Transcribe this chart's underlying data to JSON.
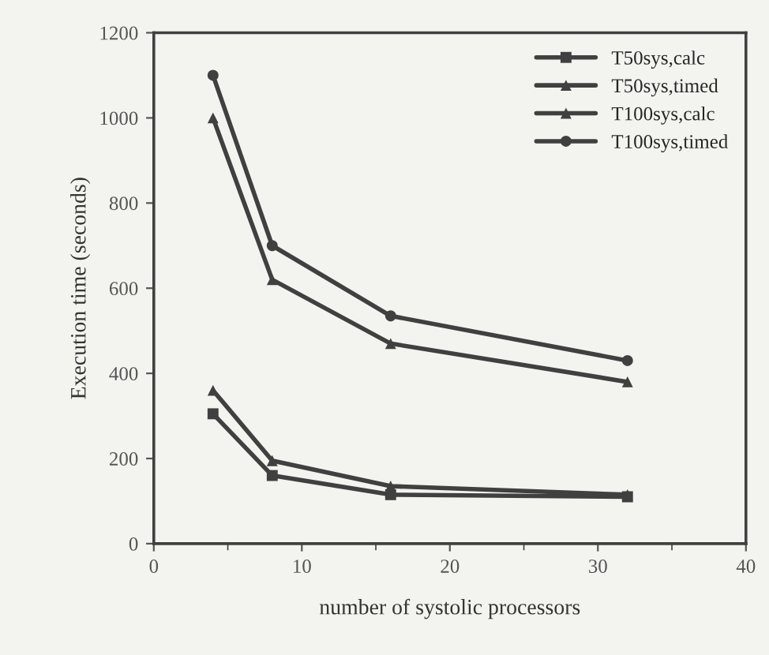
{
  "chart_data": {
    "type": "line",
    "xlabel": "number of systolic processors",
    "ylabel": "Execution time (seconds)",
    "xlim": [
      0,
      40
    ],
    "xticks": [
      0,
      10,
      20,
      30,
      40
    ],
    "ylim": [
      0,
      1200
    ],
    "yticks": [
      0,
      200,
      400,
      600,
      800,
      1000,
      1200
    ],
    "grid": false,
    "legend": "top right",
    "series": [
      {
        "name": "T50sys,calc",
        "color": "#404040",
        "marker": "square",
        "x": [
          4,
          8,
          16,
          32
        ],
        "values": [
          305,
          160,
          115,
          110
        ]
      },
      {
        "name": "T50sys,timed",
        "color": "#404040",
        "marker": "triangle",
        "x": [
          4,
          8,
          16,
          32
        ],
        "values": [
          360,
          195,
          135,
          115
        ]
      },
      {
        "name": "T100sys,calc",
        "color": "#404040",
        "marker": "triangle",
        "x": [
          4,
          8,
          16,
          32
        ],
        "values": [
          1000,
          620,
          470,
          380
        ]
      },
      {
        "name": "T100sys,timed",
        "color": "#404040",
        "marker": "circle",
        "x": [
          4,
          8,
          16,
          32
        ],
        "values": [
          1100,
          700,
          535,
          430
        ]
      }
    ]
  }
}
